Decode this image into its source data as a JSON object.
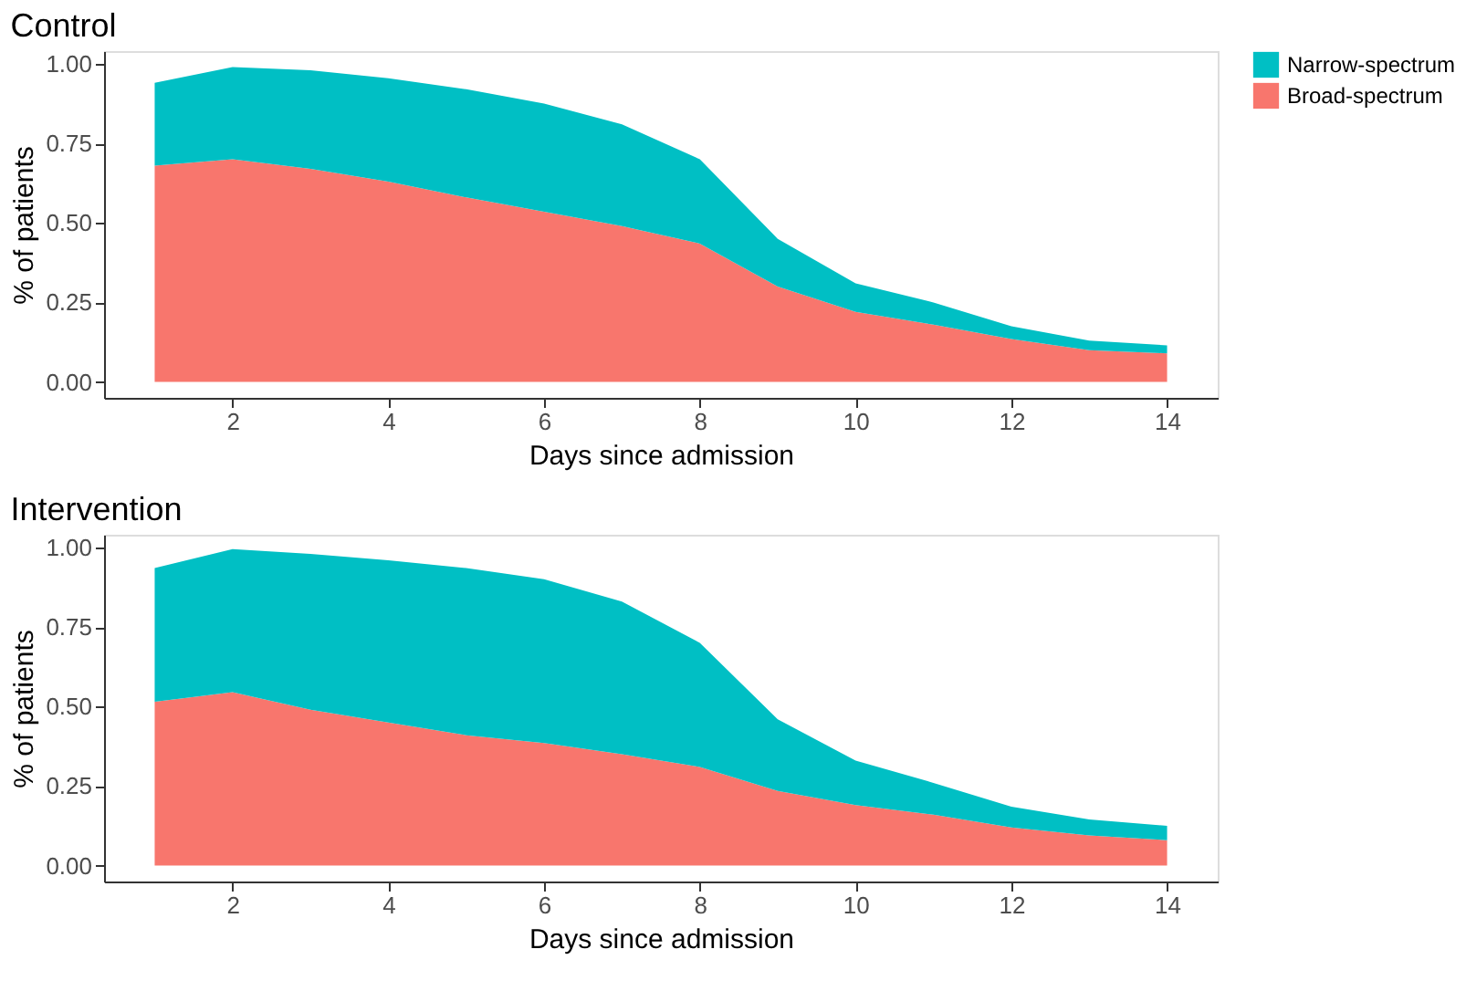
{
  "chart_data": [
    {
      "type": "area",
      "title": "Control",
      "xlabel": "Days since admission",
      "ylabel": "% of patients",
      "stacked": true,
      "legend": "right",
      "grid": false,
      "x": [
        1,
        2,
        3,
        4,
        5,
        6,
        7,
        8,
        9,
        10,
        11,
        12,
        13,
        14
      ],
      "xlim": [
        0.35,
        14.65
      ],
      "xticks": [
        2,
        4,
        6,
        8,
        10,
        12,
        14
      ],
      "ylim": [
        -0.05,
        1.04
      ],
      "yticks": [
        {
          "value": 0,
          "label": "0.00"
        },
        {
          "value": 0.25,
          "label": "0.25"
        },
        {
          "value": 0.5,
          "label": "0.50"
        },
        {
          "value": 0.75,
          "label": "0.75"
        },
        {
          "value": 1,
          "label": "1.00"
        }
      ],
      "series": [
        {
          "name": "Broad-spectrum",
          "color": "#f8766d",
          "values": [
            0.68,
            0.7,
            0.67,
            0.63,
            0.58,
            0.535,
            0.49,
            0.435,
            0.3,
            0.22,
            0.18,
            0.135,
            0.1,
            0.09
          ]
        },
        {
          "name": "Narrow-spectrum",
          "color": "#00bfc4",
          "values": [
            0.26,
            0.29,
            0.31,
            0.325,
            0.34,
            0.34,
            0.32,
            0.265,
            0.15,
            0.09,
            0.07,
            0.04,
            0.03,
            0.025
          ]
        }
      ]
    },
    {
      "type": "area",
      "title": "Intervention",
      "xlabel": "Days since admission",
      "ylabel": "% of patients",
      "stacked": true,
      "legend": "right",
      "grid": false,
      "x": [
        1,
        2,
        3,
        4,
        5,
        6,
        7,
        8,
        9,
        10,
        11,
        12,
        13,
        14
      ],
      "xlim": [
        0.35,
        14.65
      ],
      "xticks": [
        2,
        4,
        6,
        8,
        10,
        12,
        14
      ],
      "ylim": [
        -0.05,
        1.04
      ],
      "yticks": [
        {
          "value": 0,
          "label": "0.00"
        },
        {
          "value": 0.25,
          "label": "0.25"
        },
        {
          "value": 0.5,
          "label": "0.50"
        },
        {
          "value": 0.75,
          "label": "0.75"
        },
        {
          "value": 1,
          "label": "1.00"
        }
      ],
      "series": [
        {
          "name": "Broad-spectrum",
          "color": "#f8766d",
          "values": [
            0.515,
            0.545,
            0.49,
            0.45,
            0.41,
            0.385,
            0.35,
            0.31,
            0.235,
            0.19,
            0.16,
            0.12,
            0.095,
            0.08
          ]
        },
        {
          "name": "Narrow-spectrum",
          "color": "#00bfc4",
          "values": [
            0.42,
            0.45,
            0.49,
            0.51,
            0.525,
            0.515,
            0.48,
            0.39,
            0.225,
            0.14,
            0.1,
            0.065,
            0.05,
            0.045
          ]
        }
      ]
    }
  ]
}
